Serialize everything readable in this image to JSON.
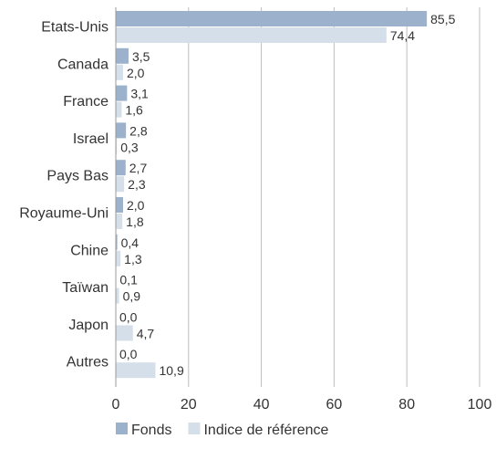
{
  "chart_data": {
    "type": "bar",
    "orientation": "horizontal",
    "categories": [
      "Etats-Unis",
      "Canada",
      "France",
      "Israel",
      "Pays Bas",
      "Royaume-Uni",
      "Chine",
      "Taïwan",
      "Japon",
      "Autres"
    ],
    "series": [
      {
        "name": "Fonds",
        "color": "#9bb1cc",
        "values": [
          85.5,
          3.5,
          3.1,
          2.8,
          2.7,
          2.0,
          0.4,
          0.1,
          0.0,
          0.0
        ],
        "labels": [
          "85,5",
          "3,5",
          "3,1",
          "2,8",
          "2,7",
          "2,0",
          "0,4",
          "0,1",
          "0,0",
          "0,0"
        ]
      },
      {
        "name": "Indice de référence",
        "color": "#d4dfea",
        "values": [
          74.4,
          2.0,
          1.6,
          0.3,
          2.3,
          1.8,
          1.3,
          0.9,
          4.7,
          10.9
        ],
        "labels": [
          "74,4",
          "2,0",
          "1,6",
          "0,3",
          "2,3",
          "1,8",
          "1,3",
          "0,9",
          "4,7",
          "10,9"
        ]
      }
    ],
    "xlim": [
      0,
      100
    ],
    "xticks": [
      0,
      20,
      40,
      60,
      80,
      100
    ],
    "grid": "vertical",
    "legend_position": "bottom-left"
  }
}
